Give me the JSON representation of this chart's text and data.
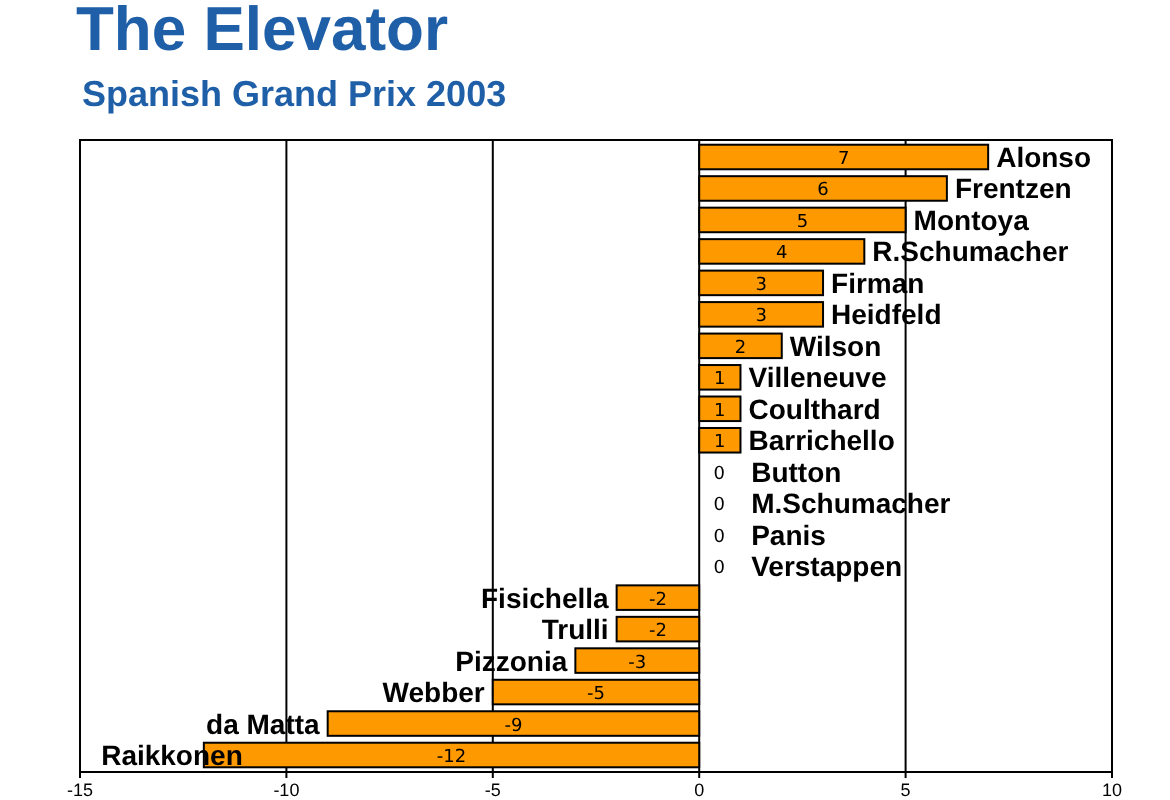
{
  "chart_data": {
    "type": "bar",
    "orientation": "horizontal",
    "title": "The Elevator",
    "subtitle": "Spanish Grand Prix 2003",
    "categories": [
      "Alonso",
      "Frentzen",
      "Montoya",
      "R.Schumacher",
      "Firman",
      "Heidfeld",
      "Wilson",
      "Villeneuve",
      "Coulthard",
      "Barrichello",
      "Button",
      "M.Schumacher",
      "Panis",
      "Verstappen",
      "Fisichella",
      "Trulli",
      "Pizzonia",
      "Webber",
      "da Matta",
      "Raikkonen"
    ],
    "values": [
      7,
      6,
      5,
      4,
      3,
      3,
      2,
      1,
      1,
      1,
      0,
      0,
      0,
      0,
      -2,
      -2,
      -3,
      -5,
      -9,
      -12
    ],
    "color": "#ff9900",
    "xlim": [
      -15,
      10
    ],
    "xticks": [
      -15,
      -10,
      -5,
      0,
      5,
      10
    ],
    "grid": "x",
    "data_labels": true
  }
}
